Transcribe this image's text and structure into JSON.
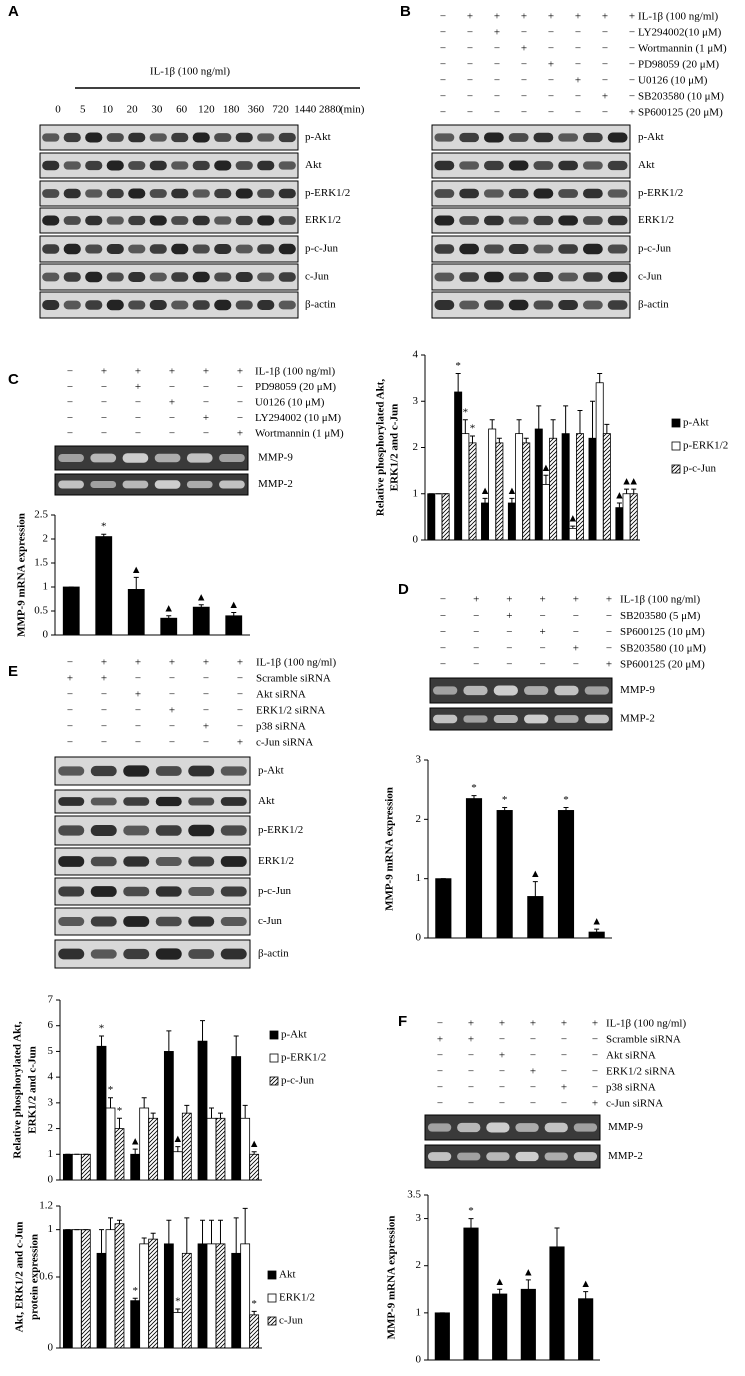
{
  "panels": {
    "A": {
      "label": "A",
      "treatment": "IL-1β (100 ng/ml)",
      "times": [
        "0",
        "5",
        "10",
        "20",
        "30",
        "60",
        "120",
        "180",
        "360",
        "720",
        "1440",
        "2880"
      ],
      "time_unit": "(min)",
      "blots": [
        "p-Akt",
        "Akt",
        "p-ERK1/2",
        "ERK1/2",
        "p-c-Jun",
        "c-Jun",
        "β-actin"
      ]
    },
    "B": {
      "label": "B",
      "conditions": [
        {
          "name": "IL-1β (100 ng/ml)",
          "signs": [
            "−",
            "+",
            "+",
            "+",
            "+",
            "+",
            "+",
            "+"
          ]
        },
        {
          "name": "LY294002(10 μM)",
          "signs": [
            "−",
            "−",
            "+",
            "−",
            "−",
            "−",
            "−",
            "−"
          ]
        },
        {
          "name": "Wortmannin (1 μM)",
          "signs": [
            "−",
            "−",
            "−",
            "+",
            "−",
            "−",
            "−",
            "−"
          ]
        },
        {
          "name": "PD98059 (20 μM)",
          "signs": [
            "−",
            "−",
            "−",
            "−",
            "+",
            "−",
            "−",
            "−"
          ]
        },
        {
          "name": "U0126 (10 μM)",
          "signs": [
            "−",
            "−",
            "−",
            "−",
            "−",
            "+",
            "−",
            "−"
          ]
        },
        {
          "name": "SB203580 (10 μM)",
          "signs": [
            "−",
            "−",
            "−",
            "−",
            "−",
            "−",
            "+",
            "−"
          ]
        },
        {
          "name": "SP600125 (20 μM)",
          "signs": [
            "−",
            "−",
            "−",
            "−",
            "−",
            "−",
            "−",
            "+"
          ]
        }
      ],
      "blots": [
        "p-Akt",
        "Akt",
        "p-ERK1/2",
        "ERK1/2",
        "p-c-Jun",
        "c-Jun",
        "β-actin"
      ]
    },
    "C": {
      "label": "C",
      "conditions": [
        {
          "name": "IL-1β (100 ng/ml)",
          "signs": [
            "−",
            "+",
            "+",
            "+",
            "+",
            "+"
          ]
        },
        {
          "name": "PD98059 (20 μM)",
          "signs": [
            "−",
            "−",
            "+",
            "−",
            "−",
            "−"
          ]
        },
        {
          "name": "U0126 (10 μM)",
          "signs": [
            "−",
            "−",
            "−",
            "+",
            "−",
            "−"
          ]
        },
        {
          "name": "LY294002 (10 μM)",
          "signs": [
            "−",
            "−",
            "−",
            "−",
            "+",
            "−"
          ]
        },
        {
          "name": "Wortmannin (1 μM)",
          "signs": [
            "−",
            "−",
            "−",
            "−",
            "−",
            "+"
          ]
        }
      ],
      "blots": [
        "MMP-9",
        "MMP-2"
      ]
    },
    "D": {
      "label": "D",
      "conditions": [
        {
          "name": "IL-1β (100 ng/ml)",
          "signs": [
            "−",
            "+",
            "+",
            "+",
            "+",
            "+"
          ]
        },
        {
          "name": "SB203580 (5 μM)",
          "signs": [
            "−",
            "−",
            "+",
            "−",
            "−",
            "−"
          ]
        },
        {
          "name": "SP600125 (10 μM)",
          "signs": [
            "−",
            "−",
            "−",
            "+",
            "−",
            "−"
          ]
        },
        {
          "name": "SB203580 (10 μM)",
          "signs": [
            "−",
            "−",
            "−",
            "−",
            "+",
            "−"
          ]
        },
        {
          "name": "SP600125 (20 μM)",
          "signs": [
            "−",
            "−",
            "−",
            "−",
            "−",
            "+"
          ]
        }
      ],
      "blots": [
        "MMP-9",
        "MMP-2"
      ]
    },
    "E": {
      "label": "E",
      "conditions": [
        {
          "name": "IL-1β (100 ng/ml)",
          "signs": [
            "−",
            "+",
            "+",
            "+",
            "+",
            "+"
          ]
        },
        {
          "name": "Scramble siRNA",
          "signs": [
            "+",
            "+",
            "−",
            "−",
            "−",
            "−"
          ]
        },
        {
          "name": "Akt siRNA",
          "signs": [
            "−",
            "−",
            "+",
            "−",
            "−",
            "−"
          ]
        },
        {
          "name": "ERK1/2 siRNA",
          "signs": [
            "−",
            "−",
            "−",
            "+",
            "−",
            "−"
          ]
        },
        {
          "name": "p38 siRNA",
          "signs": [
            "−",
            "−",
            "−",
            "−",
            "+",
            "−"
          ]
        },
        {
          "name": "c-Jun siRNA",
          "signs": [
            "−",
            "−",
            "−",
            "−",
            "−",
            "+"
          ]
        }
      ],
      "blots": [
        "p-Akt",
        "Akt",
        "p-ERK1/2",
        "ERK1/2",
        "p-c-Jun",
        "c-Jun",
        "β-actin"
      ]
    },
    "F": {
      "label": "F",
      "conditions": [
        {
          "name": "IL-1β (100 ng/ml)",
          "signs": [
            "−",
            "+",
            "+",
            "+",
            "+",
            "+"
          ]
        },
        {
          "name": "Scramble siRNA",
          "signs": [
            "+",
            "+",
            "−",
            "−",
            "−",
            "−"
          ]
        },
        {
          "name": "Akt siRNA",
          "signs": [
            "−",
            "−",
            "+",
            "−",
            "−",
            "−"
          ]
        },
        {
          "name": "ERK1/2 siRNA",
          "signs": [
            "−",
            "−",
            "−",
            "+",
            "−",
            "−"
          ]
        },
        {
          "name": "p38 siRNA",
          "signs": [
            "−",
            "−",
            "−",
            "−",
            "+",
            "−"
          ]
        },
        {
          "name": "c-Jun siRNA",
          "signs": [
            "−",
            "−",
            "−",
            "−",
            "−",
            "+"
          ]
        }
      ],
      "blots": [
        "MMP-9",
        "MMP-2"
      ]
    }
  },
  "charts": [
    {
      "type": "bar",
      "y_label": [
        "Relative phosphorylated Akt,",
        "ERK1/2 and c-Jun"
      ],
      "ylim": [
        0,
        4
      ],
      "yticks": [
        0,
        1,
        2,
        3,
        4
      ],
      "series": [
        {
          "name": "p-Akt",
          "fill": "#000",
          "values": [
            1,
            3.2,
            0.8,
            0.8,
            2.4,
            2.3,
            2.2,
            0.7
          ],
          "errors": [
            0,
            0.4,
            0.1,
            0.1,
            0.5,
            0.6,
            0.8,
            0.1
          ],
          "marks": [
            null,
            "*",
            "▲",
            "▲",
            null,
            null,
            null,
            "▲"
          ]
        },
        {
          "name": "p-ERK1/2",
          "fill": "#fff",
          "values": [
            1,
            2.3,
            2.4,
            2.3,
            1.2,
            0.25,
            3.4,
            1.0
          ],
          "errors": [
            0,
            0.3,
            0.2,
            0.3,
            0.2,
            0.05,
            0.2,
            0.1
          ],
          "marks": [
            null,
            "*",
            null,
            null,
            "▲",
            "▲",
            null,
            "▲"
          ]
        },
        {
          "name": "p-c-Jun",
          "fill": "hatch",
          "values": [
            1,
            2.1,
            2.1,
            2.1,
            2.2,
            2.3,
            2.3,
            1.0
          ],
          "errors": [
            0,
            0.15,
            0.1,
            0.1,
            0.4,
            0.5,
            0.2,
            0.1
          ],
          "marks": [
            null,
            "*",
            null,
            null,
            null,
            null,
            null,
            "▲"
          ]
        }
      ]
    },
    {
      "type": "bar",
      "y_label": [
        "MMP-9 mRNA expression"
      ],
      "ylim": [
        0,
        2.5
      ],
      "yticks": [
        0,
        0.5,
        1,
        1.5,
        2,
        2.5
      ],
      "series": [
        {
          "fill": "#000",
          "values": [
            1,
            2.05,
            0.95,
            0.35,
            0.58,
            0.4
          ],
          "errors": [
            0,
            0.05,
            0.25,
            0.05,
            0.05,
            0.07
          ],
          "marks": [
            null,
            "*",
            "▲",
            "▲",
            "▲",
            "▲"
          ]
        }
      ]
    },
    {
      "type": "bar",
      "y_label": [
        "MMP-9 mRNA expression"
      ],
      "ylim": [
        0,
        3
      ],
      "yticks": [
        0,
        1,
        2,
        3
      ],
      "series": [
        {
          "fill": "#000",
          "values": [
            1,
            2.35,
            2.15,
            0.7,
            2.15,
            0.1
          ],
          "errors": [
            0,
            0.05,
            0.05,
            0.25,
            0.05,
            0.05
          ],
          "marks": [
            null,
            "*",
            "*",
            "▲",
            "*",
            "▲"
          ]
        }
      ]
    },
    {
      "type": "bar",
      "y_label": [
        "Relative phosphorylated Akt,",
        "ERK1/2 and c-Jun"
      ],
      "ylim": [
        0,
        7
      ],
      "yticks": [
        0,
        1,
        2,
        3,
        4,
        5,
        6,
        7
      ],
      "series": [
        {
          "name": "p-Akt",
          "fill": "#000",
          "values": [
            1,
            5.2,
            1.0,
            5.0,
            5.4,
            4.8
          ],
          "errors": [
            0,
            0.4,
            0.2,
            0.8,
            0.8,
            0.8
          ],
          "marks": [
            null,
            "*",
            "▲",
            null,
            null,
            null
          ]
        },
        {
          "name": "p-ERK1/2",
          "fill": "#fff",
          "values": [
            1,
            2.8,
            2.8,
            1.1,
            2.4,
            2.4
          ],
          "errors": [
            0,
            0.4,
            0.4,
            0.2,
            0.4,
            0.5
          ],
          "marks": [
            null,
            "*",
            null,
            "▲",
            null,
            null
          ]
        },
        {
          "name": "p-c-Jun",
          "fill": "hatch",
          "values": [
            1,
            2.0,
            2.4,
            2.6,
            2.4,
            1.0
          ],
          "errors": [
            0,
            0.4,
            0.2,
            0.3,
            0.2,
            0.1
          ],
          "marks": [
            null,
            "*",
            null,
            null,
            null,
            "▲"
          ]
        }
      ]
    },
    {
      "type": "bar",
      "y_label": [
        "Akt, ERK1/2 and c-Jun",
        "protein expression"
      ],
      "ylim": [
        0,
        1.2
      ],
      "yticks": [
        0,
        0.6,
        1,
        1.2
      ],
      "series": [
        {
          "name": "Akt",
          "fill": "#000",
          "values": [
            1,
            0.8,
            0.4,
            0.88,
            0.88,
            0.8
          ],
          "errors": [
            0,
            0.2,
            0.02,
            0.2,
            0.2,
            0.3
          ],
          "marks": [
            null,
            null,
            "*",
            null,
            null,
            null
          ]
        },
        {
          "name": "ERK1/2",
          "fill": "#fff",
          "values": [
            1,
            1.0,
            0.88,
            0.3,
            0.88,
            0.88
          ],
          "errors": [
            0,
            0.1,
            0.05,
            0.03,
            0.2,
            0.3
          ],
          "marks": [
            null,
            null,
            null,
            "*",
            null,
            null
          ]
        },
        {
          "name": "c-Jun",
          "fill": "hatch",
          "values": [
            1,
            1.05,
            0.92,
            0.8,
            0.88,
            0.28
          ],
          "errors": [
            0,
            0.03,
            0.05,
            0.3,
            0.2,
            0.03
          ],
          "marks": [
            null,
            null,
            null,
            null,
            null,
            "*"
          ]
        }
      ]
    },
    {
      "type": "bar",
      "y_label": [
        "MMP-9 mRNA expression"
      ],
      "ylim": [
        0,
        3.5
      ],
      "yticks": [
        0,
        1,
        2,
        3,
        3.5
      ],
      "series": [
        {
          "fill": "#000",
          "values": [
            1,
            2.8,
            1.4,
            1.5,
            2.4,
            1.3
          ],
          "errors": [
            0,
            0.2,
            0.1,
            0.2,
            0.4,
            0.15
          ],
          "marks": [
            null,
            "*",
            "▲",
            "▲",
            null,
            "▲"
          ]
        }
      ]
    }
  ]
}
